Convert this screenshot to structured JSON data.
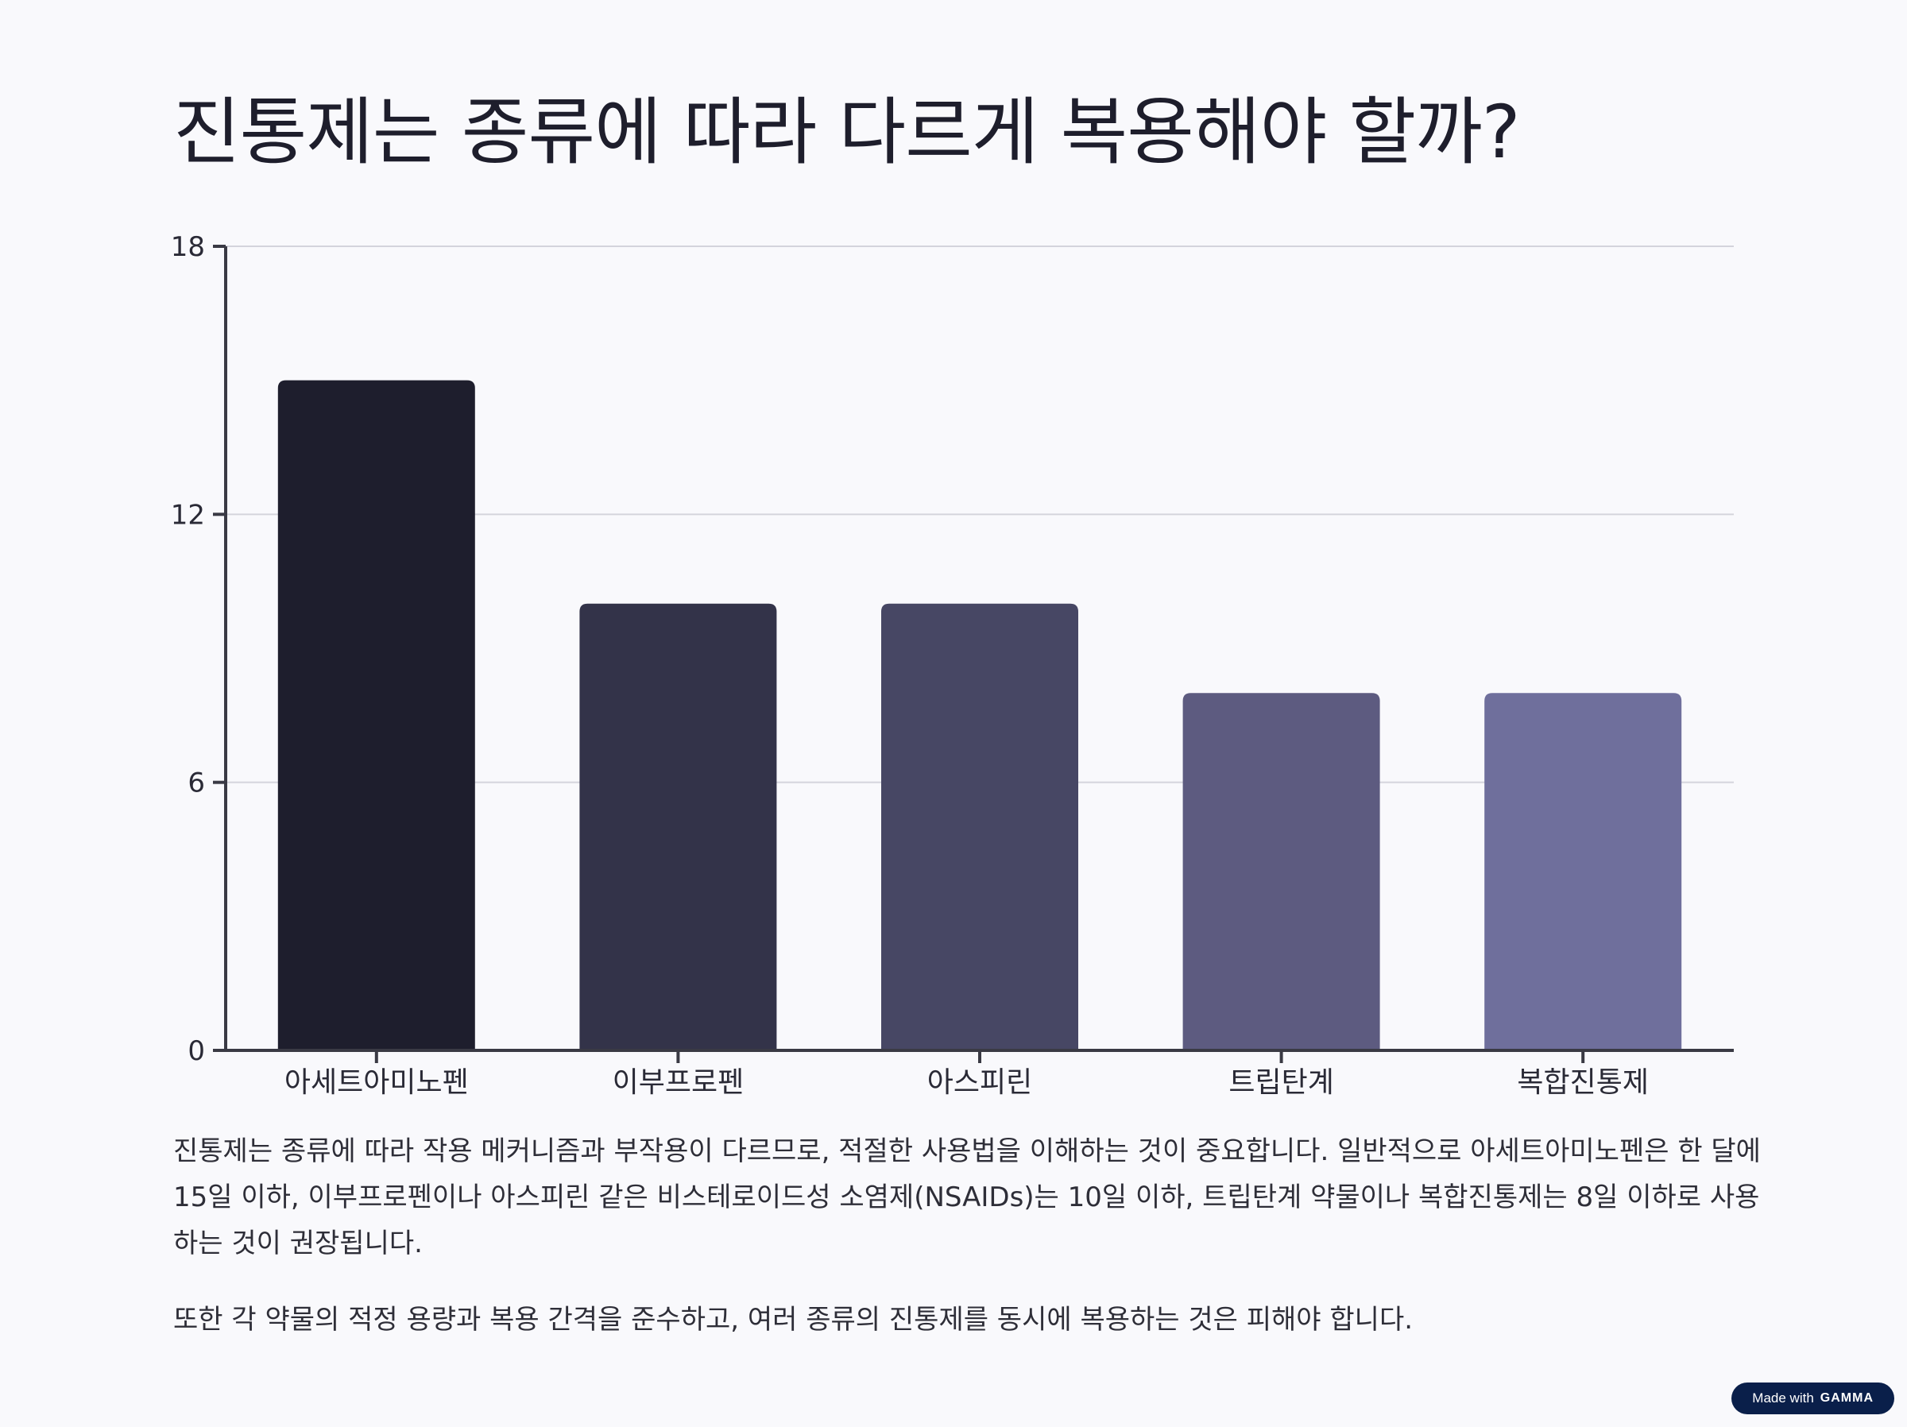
{
  "title": "진통제는 종류에 따라 다르게 복용해야 할까?",
  "chart_data": {
    "type": "bar",
    "title": "",
    "xlabel": "",
    "ylabel": "",
    "categories": [
      "아세트아미노펜",
      "이부프로펜",
      "아스피린",
      "트립탄계",
      "복합진통제"
    ],
    "values": [
      15,
      10,
      10,
      8,
      8
    ],
    "ylim": [
      0,
      18
    ],
    "yticks": [
      0,
      6,
      12,
      18
    ],
    "grid": true,
    "colors": [
      "#1e1e2d",
      "#333349",
      "#474764",
      "#5d5b80",
      "#6f6f9c"
    ]
  },
  "paragraphs": [
    "진통제는 종류에 따라 작용 메커니즘과 부작용이 다르므로, 적절한 사용법을 이해하는 것이 중요합니다. 일반적으로 아세트아미노펜은 한 달에 15일 이하, 이부프로펜이나 아스피린 같은 비스테로이드성 소염제(NSAIDs)는 10일 이하, 트립탄계 약물이나 복합진통제는 8일 이하로 사용하는 것이 권장됩니다.",
    "또한 각 약물의 적정 용량과 복용 간격을 준수하고, 여러 종류의 진통제를 동시에 복용하는 것은 피해야 합니다."
  ],
  "badge": {
    "prefix": "Made with",
    "brand": "GAMMA"
  }
}
